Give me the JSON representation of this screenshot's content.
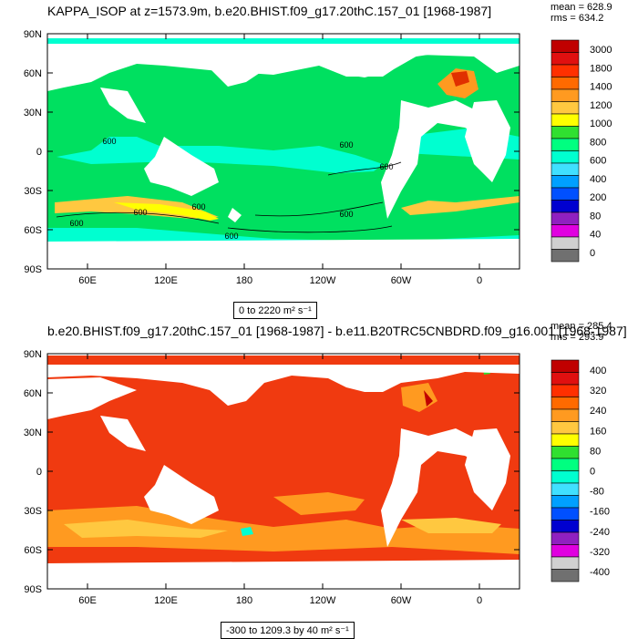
{
  "panel1": {
    "title": "KAPPA_ISOP at z=1573.9m, b.e20.BHIST.f09_g17.20thC.157_01 [1968-1987]",
    "mean": "mean = 628.9",
    "rms": "rms = 634.2",
    "range": "0 to 2220 m² s⁻¹",
    "lat_labels": [
      "90N",
      "60N",
      "30N",
      "0",
      "30S",
      "60S",
      "90S"
    ],
    "lon_labels": [
      "60E",
      "120E",
      "180",
      "120W",
      "60W",
      "0"
    ],
    "legend_labels": [
      "3000",
      "1800",
      "1400",
      "1200",
      "1000",
      "800",
      "600",
      "400",
      "200",
      "80",
      "40",
      "0"
    ],
    "contour_labels": [
      "600",
      "600",
      "600",
      "600",
      "600",
      "600",
      "600",
      "600"
    ],
    "legend_colors": [
      "#c00000",
      "#e01010",
      "#ff3000",
      "#ff6a00",
      "#ff9a20",
      "#ffc840",
      "#ffff00",
      "#30e030",
      "#00ff80",
      "#00ffd0",
      "#40e0ff",
      "#00a0ff",
      "#0050ff",
      "#0000d0",
      "#9020c0",
      "#e000e0",
      "#d0d0d0",
      "#707070"
    ],
    "map_colors": {
      "main": "#00e060",
      "low": "#00ffd0",
      "high": "#ffb030",
      "peak": "#ffff00",
      "hot": "#e03000",
      "land": "#ffffff"
    }
  },
  "panel2": {
    "title": "b.e20.BHIST.f09_g17.20thC.157_01 [1968-1987] - b.e11.B20TRC5CNBDRD.f09_g16.001 [1968-1987]",
    "mean": "mean = 285.4",
    "rms": "rms = 293.9",
    "range": "-300 to 1209.3 by 40 m² s⁻¹",
    "lat_labels": [
      "90N",
      "60N",
      "30N",
      "0",
      "30S",
      "60S",
      "90S"
    ],
    "lon_labels": [
      "60E",
      "120E",
      "180",
      "120W",
      "60W",
      "0"
    ],
    "legend_labels": [
      "400",
      "320",
      "240",
      "160",
      "80",
      "0",
      "-80",
      "-160",
      "-240",
      "-320",
      "-400"
    ],
    "legend_colors": [
      "#c00000",
      "#e01010",
      "#ff3000",
      "#ff6a00",
      "#ff9a20",
      "#ffc840",
      "#ffff00",
      "#30e030",
      "#00ff80",
      "#00ffd0",
      "#40e0ff",
      "#00a0ff",
      "#0050ff",
      "#0000d0",
      "#9020c0",
      "#e000e0",
      "#d0d0d0",
      "#707070"
    ],
    "map_colors": {
      "main": "#f03a10",
      "orange": "#ff9a20",
      "yellow": "#ffc840",
      "cyan": "#00ffd0",
      "land": "#ffffff"
    }
  }
}
